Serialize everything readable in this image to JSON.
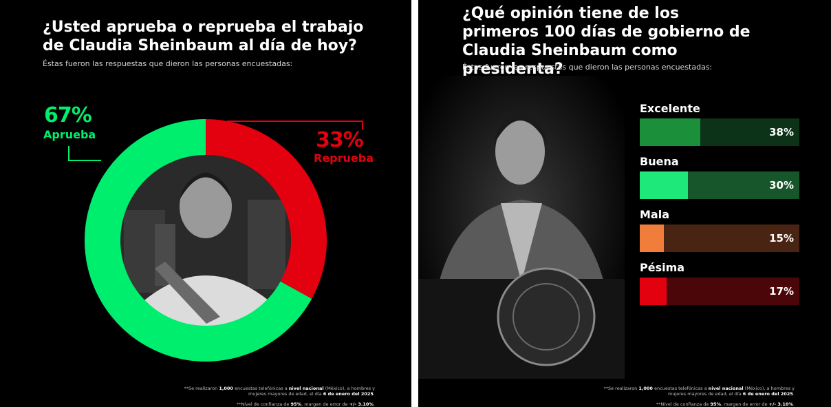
{
  "left_panel": {
    "title": "¿Usted aprueba o reprueba el trabajo de Claudia Sheinbaum al día de hoy?",
    "subtitle": "Éstas fueron las respuestas que dieron las personas encuestadas:",
    "footnote_1": {
      "pre": "**Se realizaron ",
      "count": "1,000",
      "mid1": " encuestas telefónicas a ",
      "scope": "nivel nacional",
      "mid2": " (México), a hombres y mujeres mayores de edad, el día ",
      "date": "6 de enero del 2025",
      "post": "."
    },
    "footnote_2": {
      "pre": "**Nivel de confianza de ",
      "confidence": "95%",
      "mid": ", margen de error de ",
      "margin": "+/- 3.10%",
      "post": "."
    }
  },
  "right_panel": {
    "title": "¿Qué opinión tiene de los primeros 100 días de gobierno de Claudia Sheinbaum como presidenta?",
    "subtitle": "Éstas fueron las respuestas que dieron las personas encuestadas:",
    "footnote_1": {
      "pre": "**Se realizaron ",
      "count": "1,000",
      "mid1": " encuestas telefónicas a ",
      "scope": "nivel nacional",
      "mid2": " (México), a hombres y mujeres mayores de edad, el día ",
      "date": "6 de enero del 2025",
      "post": "."
    },
    "footnote_2": {
      "pre": "**Nivel de confianza de ",
      "confidence": "95%",
      "mid": ", margen de error de ",
      "margin": "+/- 3.10%",
      "post": "."
    }
  },
  "chart_data": [
    {
      "type": "pie",
      "title": "¿Usted aprueba o reprueba el trabajo de Claudia Sheinbaum al día de hoy?",
      "categories": [
        "Aprueba",
        "Reprueba"
      ],
      "values": [
        67,
        33
      ],
      "value_labels": [
        "67%",
        "33%"
      ],
      "colors": [
        "#00ee6e",
        "#e3000f"
      ],
      "donut": true
    },
    {
      "type": "bar",
      "orientation": "horizontal",
      "title": "¿Qué opinión tiene de los primeros 100 días de gobierno de Claudia Sheinbaum como presidenta?",
      "categories": [
        "Excelente",
        "Buena",
        "Mala",
        "Pésima"
      ],
      "values": [
        38,
        30,
        15,
        17
      ],
      "value_labels": [
        "38%",
        "30%",
        "15%",
        "17%"
      ],
      "fill_colors": [
        "#1c8f3a",
        "#1fe87a",
        "#f07d3c",
        "#e3000f"
      ],
      "track_colors": [
        "#0c3218",
        "#17552b",
        "#4a2412",
        "#4a0608"
      ],
      "xlim": [
        0,
        100
      ]
    }
  ]
}
